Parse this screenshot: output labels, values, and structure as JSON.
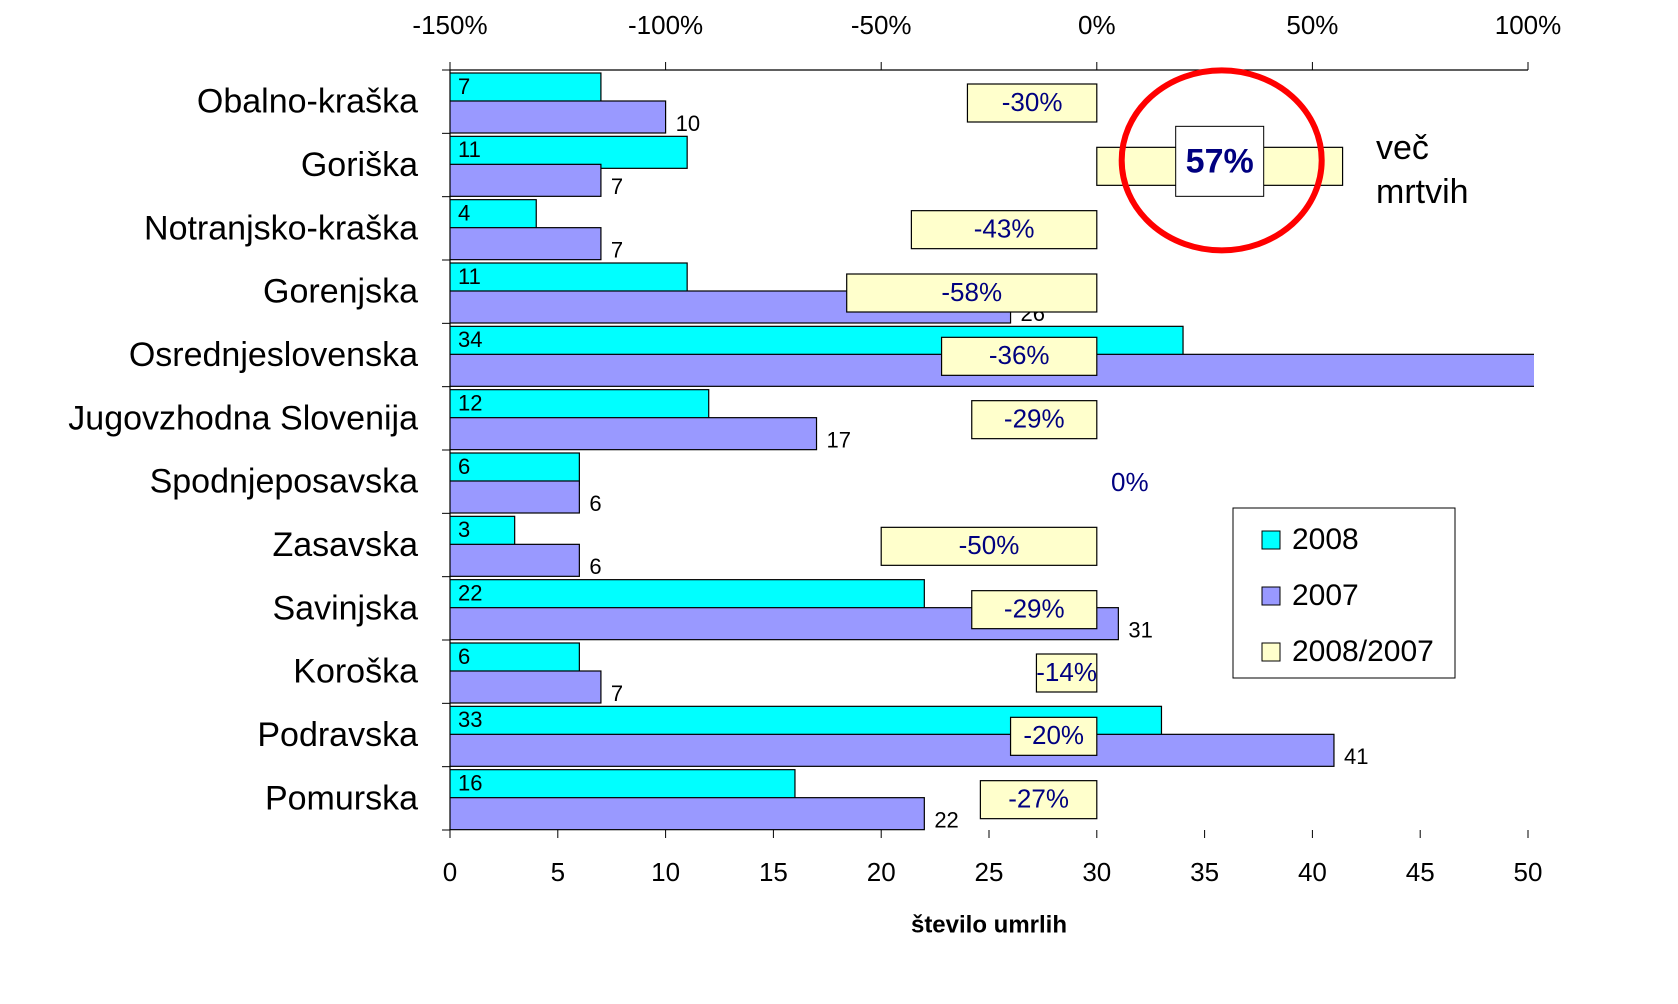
{
  "chart_data": {
    "type": "bar",
    "orientation": "horizontal",
    "categories": [
      "Obalno-kraška",
      "Goriška",
      "Notranjsko-kraška",
      "Gorenjska",
      "Osrednjeslovenska",
      "Jugovzhodna Slovenija",
      "Spodnjeposavska",
      "Zasavska",
      "Savinjska",
      "Koroška",
      "Podravska",
      "Pomurska"
    ],
    "series": [
      {
        "name": "2008",
        "color": "#00ffff",
        "values": [
          7,
          11,
          4,
          11,
          34,
          12,
          6,
          3,
          22,
          6,
          33,
          16
        ]
      },
      {
        "name": "2007",
        "color": "#9999ff",
        "values": [
          10,
          7,
          7,
          26,
          53,
          17,
          6,
          6,
          31,
          7,
          41,
          22
        ]
      },
      {
        "name": "2008/2007",
        "color": "#ffffcc",
        "axis": "x2",
        "values": [
          -30,
          57,
          -43,
          -58,
          -36,
          -29,
          0,
          -50,
          -29,
          -14,
          -20,
          -27
        ],
        "value_labels": [
          "-30%",
          "57%",
          "-43%",
          "-58%",
          "-36%",
          "-29%",
          "0%",
          "-50%",
          "-29%",
          "-14%",
          "-20%",
          "-27%"
        ]
      }
    ],
    "xlabel": "število umrlih",
    "xlim": [
      0,
      50
    ],
    "xticks": [
      0,
      5,
      10,
      15,
      20,
      25,
      30,
      35,
      40,
      45,
      50
    ],
    "x2lim": [
      -150,
      100
    ],
    "x2ticks": [
      {
        "value": -150,
        "label": "-150%"
      },
      {
        "value": -100,
        "label": "-100%"
      },
      {
        "value": -50,
        "label": "-50%"
      },
      {
        "value": 0,
        "label": "0%"
      },
      {
        "value": 50,
        "label": "50%"
      },
      {
        "value": 100,
        "label": "100%"
      }
    ],
    "annotation": [
      "več",
      "mrtvih"
    ],
    "highlight_index": 1,
    "highlight_color": "#ff0000",
    "legend": "right"
  }
}
